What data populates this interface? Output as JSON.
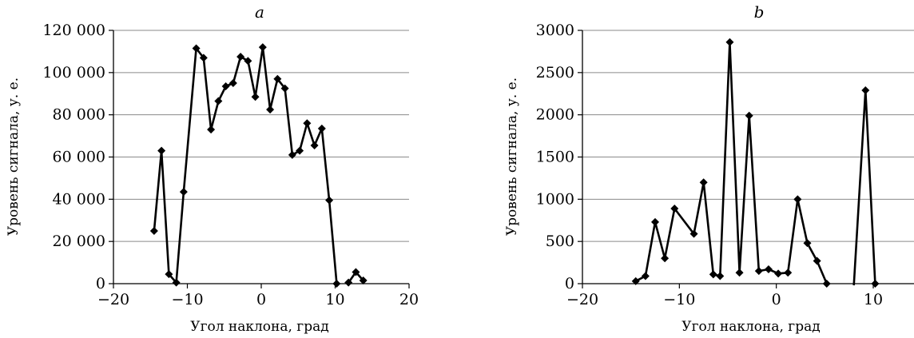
{
  "chart_data": [
    {
      "type": "line",
      "title": "a",
      "xlabel": "Угол наклона, град",
      "ylabel": "Уровень сигнала, у. е.",
      "xlim": [
        -20,
        20
      ],
      "ylim": [
        0,
        120000
      ],
      "x_ticks": [
        "−20",
        "−10",
        "0",
        "10",
        "20"
      ],
      "y_ticks": [
        "0",
        "20 000",
        "40 000",
        "60 000",
        "80 000",
        "100 000",
        "120 000"
      ],
      "grid": "horizontal",
      "series": [
        {
          "segments": [
            [
              [
                -14.5,
                25000
              ],
              [
                -13.5,
                63000
              ],
              [
                -12.5,
                4500
              ],
              [
                -11.5,
                500
              ],
              [
                -10.5,
                43500
              ],
              [
                -8.8,
                111500
              ],
              [
                -7.8,
                107000
              ],
              [
                -6.8,
                73000
              ],
              [
                -5.8,
                86500
              ],
              [
                -4.8,
                93500
              ],
              [
                -3.8,
                95000
              ],
              [
                -2.8,
                107500
              ],
              [
                -1.8,
                105500
              ],
              [
                -0.8,
                88500
              ],
              [
                0.2,
                112000
              ],
              [
                1.2,
                82500
              ],
              [
                2.2,
                97000
              ],
              [
                3.2,
                92500
              ],
              [
                4.2,
                61000
              ],
              [
                5.2,
                63000
              ],
              [
                6.2,
                76000
              ],
              [
                7.2,
                65500
              ],
              [
                8.2,
                73500
              ],
              [
                9.2,
                39500
              ],
              [
                10.2,
                0
              ]
            ],
            [
              [
                11.8,
                500
              ],
              [
                12.8,
                5500
              ],
              [
                13.8,
                1500
              ]
            ]
          ]
        }
      ]
    },
    {
      "type": "line",
      "title": "b",
      "xlabel": "Угол наклона, град",
      "ylabel": "Уровень сигнала, у. е.",
      "xlim": [
        -20,
        12
      ],
      "ylim": [
        0,
        3000
      ],
      "x_ticks": [
        "−20",
        "−10",
        "0",
        "10"
      ],
      "y_ticks": [
        "0",
        "500",
        "1000",
        "1500",
        "2000",
        "2500",
        "3000"
      ],
      "grid": "horizontal",
      "series": [
        {
          "segments": [
            [
              [
                -14.5,
                30
              ],
              [
                -13.5,
                90
              ],
              [
                -12.5,
                730
              ],
              [
                -11.5,
                300
              ],
              [
                -10.5,
                890
              ],
              [
                -8.5,
                590
              ],
              [
                -7.5,
                1200
              ],
              [
                -6.5,
                110
              ],
              [
                -5.8,
                90
              ],
              [
                -4.8,
                2860
              ],
              [
                -3.8,
                130
              ],
              [
                -2.8,
                1990
              ],
              [
                -1.8,
                150
              ],
              [
                -0.8,
                170
              ],
              [
                0.2,
                120
              ],
              [
                1.2,
                130
              ],
              [
                2.2,
                1000
              ],
              [
                3.2,
                480
              ],
              [
                4.2,
                270
              ],
              [
                5.2,
                0
              ]
            ],
            [
              [
                8.0,
                -20
              ],
              [
                9.2,
                2290
              ],
              [
                10.2,
                0
              ]
            ]
          ]
        }
      ]
    }
  ]
}
